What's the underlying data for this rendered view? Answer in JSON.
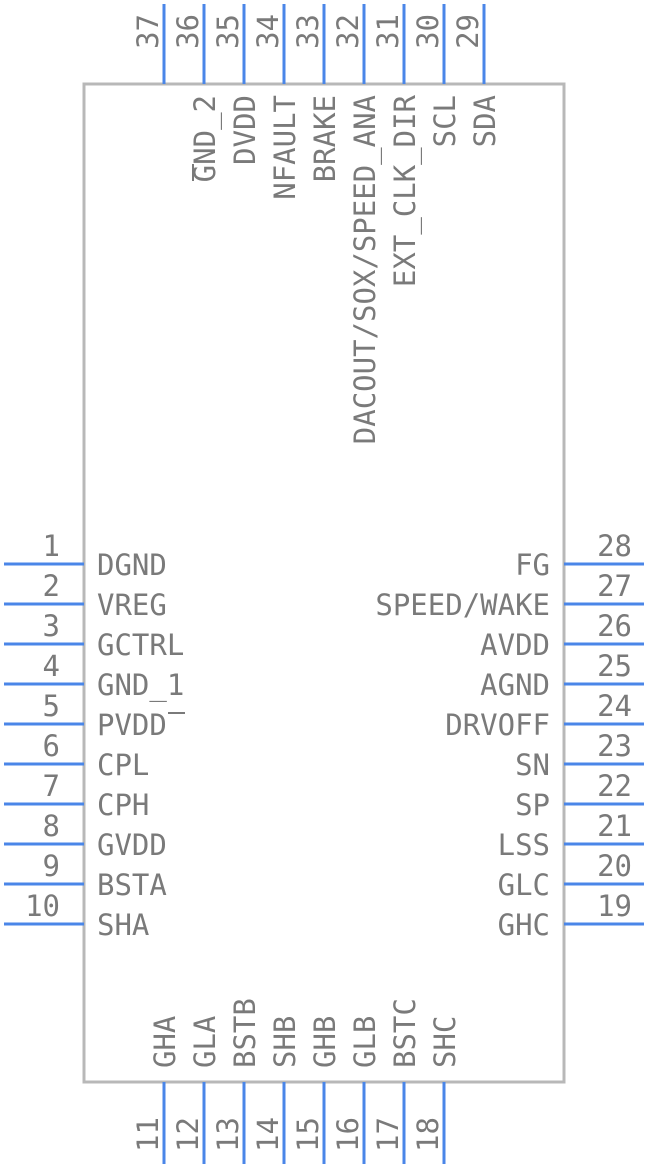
{
  "pins": {
    "left": [
      {
        "num": "1",
        "label": "DGND"
      },
      {
        "num": "2",
        "label": "VREG"
      },
      {
        "num": "3",
        "label": "GCTRL"
      },
      {
        "num": "4",
        "label": "GND_1"
      },
      {
        "num": "5",
        "label": "PVDD"
      },
      {
        "num": "6",
        "label": "CPL"
      },
      {
        "num": "7",
        "label": "CPH"
      },
      {
        "num": "8",
        "label": "GVDD"
      },
      {
        "num": "9",
        "label": "BSTA"
      },
      {
        "num": "10",
        "label": "SHA"
      }
    ],
    "bottom": [
      {
        "num": "11",
        "label": "GHA"
      },
      {
        "num": "12",
        "label": "GLA"
      },
      {
        "num": "13",
        "label": "BSTB"
      },
      {
        "num": "14",
        "label": "SHB"
      },
      {
        "num": "15",
        "label": "GHB"
      },
      {
        "num": "16",
        "label": "GLB"
      },
      {
        "num": "17",
        "label": "BSTC"
      },
      {
        "num": "18",
        "label": "SHC"
      }
    ],
    "right": [
      {
        "num": "19",
        "label": "GHC"
      },
      {
        "num": "20",
        "label": "GLC"
      },
      {
        "num": "21",
        "label": "LSS"
      },
      {
        "num": "22",
        "label": "SP"
      },
      {
        "num": "23",
        "label": "SN"
      },
      {
        "num": "24",
        "label": "DRVOFF"
      },
      {
        "num": "25",
        "label": "AGND"
      },
      {
        "num": "26",
        "label": "AVDD"
      },
      {
        "num": "27",
        "label": "SPEED/WAKE"
      },
      {
        "num": "28",
        "label": "FG"
      }
    ],
    "top": [
      {
        "num": "29",
        "label": "SDA"
      },
      {
        "num": "30",
        "label": "SCL"
      },
      {
        "num": "31",
        "label": "EXT_CLK_DIR"
      },
      {
        "num": "32",
        "label": "DACOUT/SOX/SPEED_ANA"
      },
      {
        "num": "33",
        "label": "BRAKE"
      },
      {
        "num": "34",
        "label": "NFAULT"
      },
      {
        "num": "35",
        "label": "DVDD"
      },
      {
        "num": "36",
        "label": "GND_2"
      },
      {
        "num": "37",
        "label": ""
      }
    ]
  },
  "colors": {
    "pin": "#4a86e8",
    "outline": "#b8b8b8",
    "text": "#7a7a7a"
  }
}
